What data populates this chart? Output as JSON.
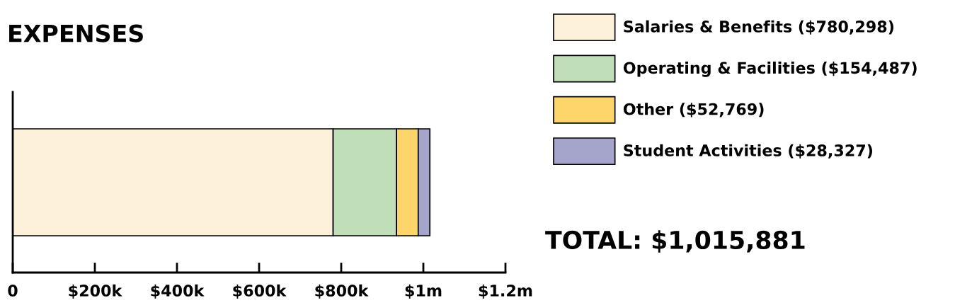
{
  "chart_data": {
    "type": "bar",
    "orientation": "horizontal",
    "stacked": true,
    "title": "EXPENSES",
    "categories": [
      null
    ],
    "series": [
      {
        "name": "Salaries & Benefits ($780,298)",
        "color": "#fdf1d9",
        "values": [
          780298
        ]
      },
      {
        "name": "Operating & Facilities ($154,487)",
        "color": "#c0dfb9",
        "values": [
          154487
        ]
      },
      {
        "name": "Other ($52,769)",
        "color": "#fdd56a",
        "values": [
          52769
        ]
      },
      {
        "name": "Student Activities ($28,327)",
        "color": "#a5a5cb",
        "values": [
          28327
        ]
      }
    ],
    "xlim": [
      0,
      1200000
    ],
    "xticks": [
      {
        "value": 0,
        "label": "0"
      },
      {
        "value": 200000,
        "label": "$200k"
      },
      {
        "value": 400000,
        "label": "$400k"
      },
      {
        "value": 600000,
        "label": "$600k"
      },
      {
        "value": 800000,
        "label": "$800k"
      },
      {
        "value": 1000000,
        "label": "$1m"
      },
      {
        "value": 1200000,
        "label": "$1.2m"
      }
    ],
    "grid": false,
    "legend": "right",
    "annotations": [
      "TOTAL: $1,015,881"
    ]
  }
}
